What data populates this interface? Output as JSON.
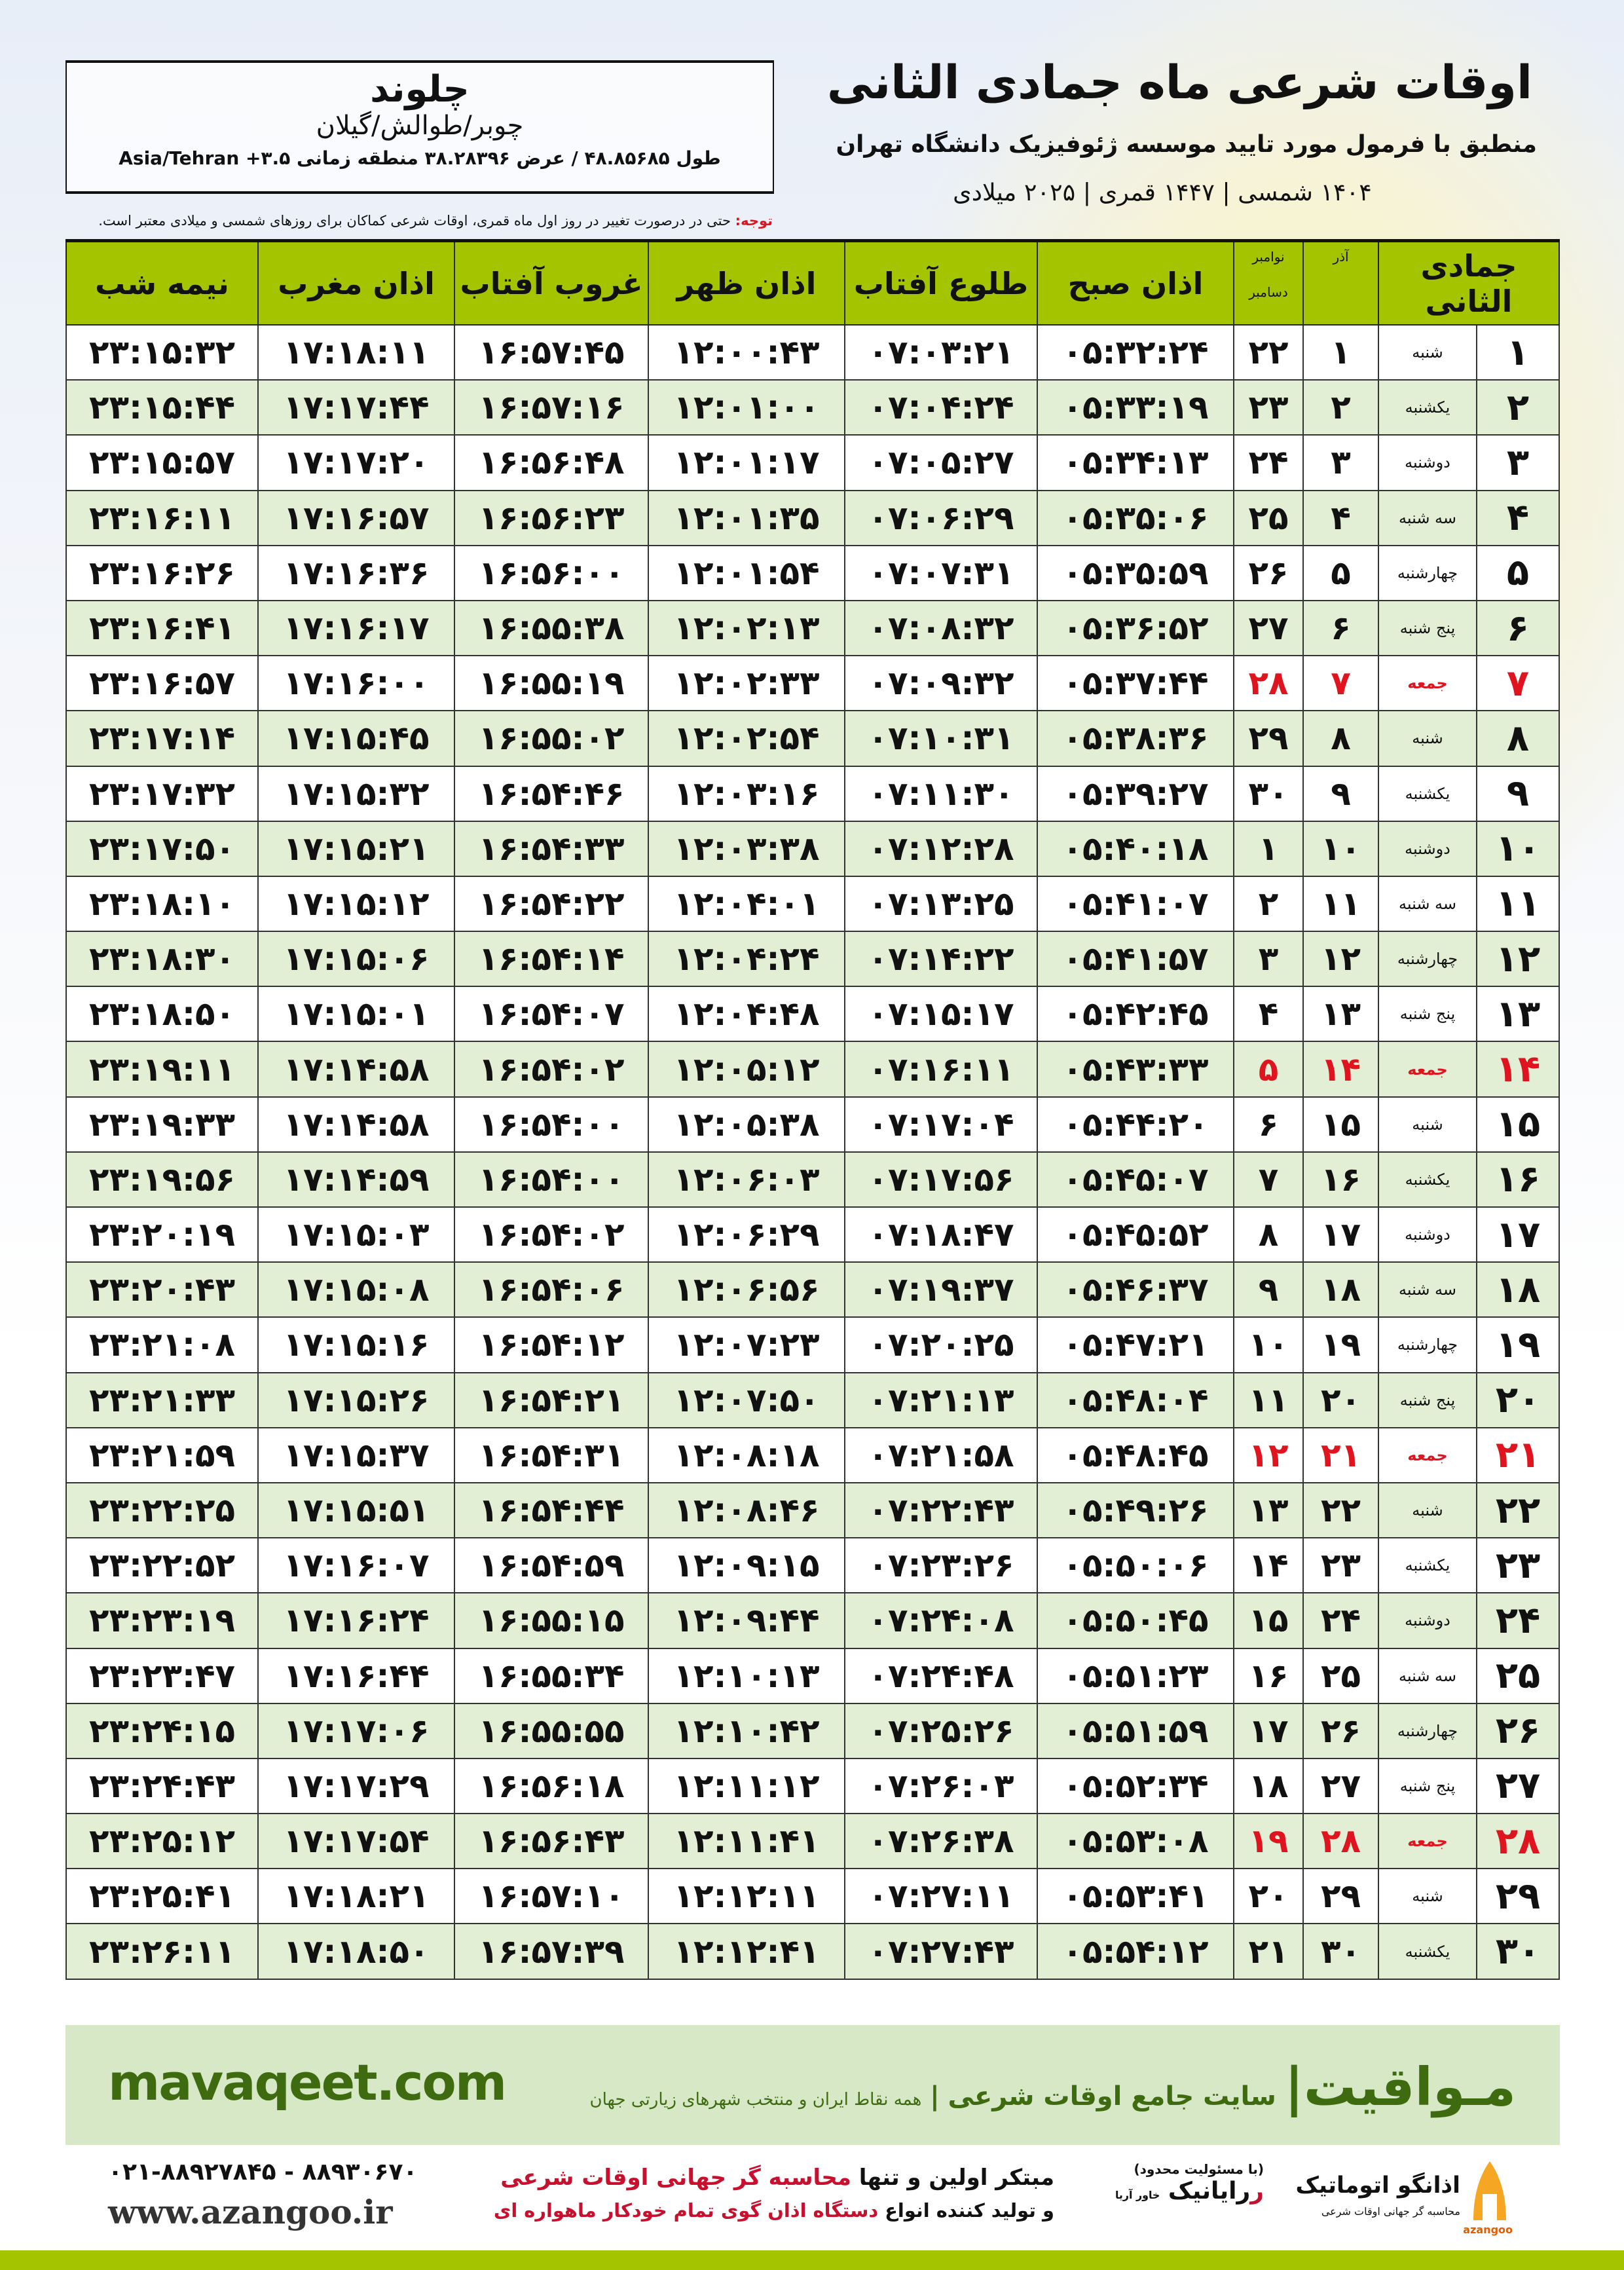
{
  "header": {
    "title": "اوقات شرعی ماه جمادی الثانی",
    "subtitle": "منطبق با فرمول مورد تایید موسسه ژئوفیزیک دانشگاه تهران",
    "years": "۱۴۰۴ شمسی | ۱۴۴۷ قمری | ۲۰۲۵ میلادی"
  },
  "city": {
    "name": "چلوند",
    "province": "چوبر/طوالش/گیلان",
    "geo": "طول ۴۸.۸۵۶۸۵ / عرض ۳۸.۲۸۳۹۶ منطقه زمانی ۳.۵+ Asia/Tehran"
  },
  "note": {
    "label": "توجه:",
    "text": " حتی در درصورت تغییر در روز اول ماه قمری، اوقات شرعی کماکان برای روزهای شمسی و میلادی معتبر است."
  },
  "table": {
    "headers": {
      "day": "جمادی الثانی",
      "azar": "آذر",
      "greg_top": "نوامبر",
      "greg_bottom": "دسامبر",
      "sobh": "اذان صبح",
      "tolu": "طلوع آفتاب",
      "zohr": "اذان ظهر",
      "ghorub": "غروب آفتاب",
      "maghreb": "اذان مغرب",
      "nime": "نیمه شب"
    },
    "holiday_color": "#e0141e",
    "rows": [
      [
        "۱",
        "شنبه",
        "۱",
        "۲۲",
        "۰۵:۳۲:۲۴",
        "۰۷:۰۳:۲۱",
        "۱۲:۰۰:۴۳",
        "۱۶:۵۷:۴۵",
        "۱۷:۱۸:۱۱",
        "۲۳:۱۵:۳۲"
      ],
      [
        "۲",
        "یکشنبه",
        "۲",
        "۲۳",
        "۰۵:۳۳:۱۹",
        "۰۷:۰۴:۲۴",
        "۱۲:۰۱:۰۰",
        "۱۶:۵۷:۱۶",
        "۱۷:۱۷:۴۴",
        "۲۳:۱۵:۴۴"
      ],
      [
        "۳",
        "دوشنبه",
        "۳",
        "۲۴",
        "۰۵:۳۴:۱۳",
        "۰۷:۰۵:۲۷",
        "۱۲:۰۱:۱۷",
        "۱۶:۵۶:۴۸",
        "۱۷:۱۷:۲۰",
        "۲۳:۱۵:۵۷"
      ],
      [
        "۴",
        "سه شنبه",
        "۴",
        "۲۵",
        "۰۵:۳۵:۰۶",
        "۰۷:۰۶:۲۹",
        "۱۲:۰۱:۳۵",
        "۱۶:۵۶:۲۳",
        "۱۷:۱۶:۵۷",
        "۲۳:۱۶:۱۱"
      ],
      [
        "۵",
        "چهارشنبه",
        "۵",
        "۲۶",
        "۰۵:۳۵:۵۹",
        "۰۷:۰۷:۳۱",
        "۱۲:۰۱:۵۴",
        "۱۶:۵۶:۰۰",
        "۱۷:۱۶:۳۶",
        "۲۳:۱۶:۲۶"
      ],
      [
        "۶",
        "پنج شنبه",
        "۶",
        "۲۷",
        "۰۵:۳۶:۵۲",
        "۰۷:۰۸:۳۲",
        "۱۲:۰۲:۱۳",
        "۱۶:۵۵:۳۸",
        "۱۷:۱۶:۱۷",
        "۲۳:۱۶:۴۱"
      ],
      [
        "۷",
        "جمعه",
        "۷",
        "۲۸",
        "۰۵:۳۷:۴۴",
        "۰۷:۰۹:۳۲",
        "۱۲:۰۲:۳۳",
        "۱۶:۵۵:۱۹",
        "۱۷:۱۶:۰۰",
        "۲۳:۱۶:۵۷"
      ],
      [
        "۸",
        "شنبه",
        "۸",
        "۲۹",
        "۰۵:۳۸:۳۶",
        "۰۷:۱۰:۳۱",
        "۱۲:۰۲:۵۴",
        "۱۶:۵۵:۰۲",
        "۱۷:۱۵:۴۵",
        "۲۳:۱۷:۱۴"
      ],
      [
        "۹",
        "یکشنبه",
        "۹",
        "۳۰",
        "۰۵:۳۹:۲۷",
        "۰۷:۱۱:۳۰",
        "۱۲:۰۳:۱۶",
        "۱۶:۵۴:۴۶",
        "۱۷:۱۵:۳۲",
        "۲۳:۱۷:۳۲"
      ],
      [
        "۱۰",
        "دوشنبه",
        "۱۰",
        "۱",
        "۰۵:۴۰:۱۸",
        "۰۷:۱۲:۲۸",
        "۱۲:۰۳:۳۸",
        "۱۶:۵۴:۳۳",
        "۱۷:۱۵:۲۱",
        "۲۳:۱۷:۵۰"
      ],
      [
        "۱۱",
        "سه شنبه",
        "۱۱",
        "۲",
        "۰۵:۴۱:۰۷",
        "۰۷:۱۳:۲۵",
        "۱۲:۰۴:۰۱",
        "۱۶:۵۴:۲۲",
        "۱۷:۱۵:۱۲",
        "۲۳:۱۸:۱۰"
      ],
      [
        "۱۲",
        "چهارشنبه",
        "۱۲",
        "۳",
        "۰۵:۴۱:۵۷",
        "۰۷:۱۴:۲۲",
        "۱۲:۰۴:۲۴",
        "۱۶:۵۴:۱۴",
        "۱۷:۱۵:۰۶",
        "۲۳:۱۸:۳۰"
      ],
      [
        "۱۳",
        "پنج شنبه",
        "۱۳",
        "۴",
        "۰۵:۴۲:۴۵",
        "۰۷:۱۵:۱۷",
        "۱۲:۰۴:۴۸",
        "۱۶:۵۴:۰۷",
        "۱۷:۱۵:۰۱",
        "۲۳:۱۸:۵۰"
      ],
      [
        "۱۴",
        "جمعه",
        "۱۴",
        "۵",
        "۰۵:۴۳:۳۳",
        "۰۷:۱۶:۱۱",
        "۱۲:۰۵:۱۲",
        "۱۶:۵۴:۰۲",
        "۱۷:۱۴:۵۸",
        "۲۳:۱۹:۱۱"
      ],
      [
        "۱۵",
        "شنبه",
        "۱۵",
        "۶",
        "۰۵:۴۴:۲۰",
        "۰۷:۱۷:۰۴",
        "۱۲:۰۵:۳۸",
        "۱۶:۵۴:۰۰",
        "۱۷:۱۴:۵۸",
        "۲۳:۱۹:۳۳"
      ],
      [
        "۱۶",
        "یکشنبه",
        "۱۶",
        "۷",
        "۰۵:۴۵:۰۷",
        "۰۷:۱۷:۵۶",
        "۱۲:۰۶:۰۳",
        "۱۶:۵۴:۰۰",
        "۱۷:۱۴:۵۹",
        "۲۳:۱۹:۵۶"
      ],
      [
        "۱۷",
        "دوشنبه",
        "۱۷",
        "۸",
        "۰۵:۴۵:۵۲",
        "۰۷:۱۸:۴۷",
        "۱۲:۰۶:۲۹",
        "۱۶:۵۴:۰۲",
        "۱۷:۱۵:۰۳",
        "۲۳:۲۰:۱۹"
      ],
      [
        "۱۸",
        "سه شنبه",
        "۱۸",
        "۹",
        "۰۵:۴۶:۳۷",
        "۰۷:۱۹:۳۷",
        "۱۲:۰۶:۵۶",
        "۱۶:۵۴:۰۶",
        "۱۷:۱۵:۰۸",
        "۲۳:۲۰:۴۳"
      ],
      [
        "۱۹",
        "چهارشنبه",
        "۱۹",
        "۱۰",
        "۰۵:۴۷:۲۱",
        "۰۷:۲۰:۲۵",
        "۱۲:۰۷:۲۳",
        "۱۶:۵۴:۱۲",
        "۱۷:۱۵:۱۶",
        "۲۳:۲۱:۰۸"
      ],
      [
        "۲۰",
        "پنج شنبه",
        "۲۰",
        "۱۱",
        "۰۵:۴۸:۰۴",
        "۰۷:۲۱:۱۳",
        "۱۲:۰۷:۵۰",
        "۱۶:۵۴:۲۱",
        "۱۷:۱۵:۲۶",
        "۲۳:۲۱:۳۳"
      ],
      [
        "۲۱",
        "جمعه",
        "۲۱",
        "۱۲",
        "۰۵:۴۸:۴۵",
        "۰۷:۲۱:۵۸",
        "۱۲:۰۸:۱۸",
        "۱۶:۵۴:۳۱",
        "۱۷:۱۵:۳۷",
        "۲۳:۲۱:۵۹"
      ],
      [
        "۲۲",
        "شنبه",
        "۲۲",
        "۱۳",
        "۰۵:۴۹:۲۶",
        "۰۷:۲۲:۴۳",
        "۱۲:۰۸:۴۶",
        "۱۶:۵۴:۴۴",
        "۱۷:۱۵:۵۱",
        "۲۳:۲۲:۲۵"
      ],
      [
        "۲۳",
        "یکشنبه",
        "۲۳",
        "۱۴",
        "۰۵:۵۰:۰۶",
        "۰۷:۲۳:۲۶",
        "۱۲:۰۹:۱۵",
        "۱۶:۵۴:۵۹",
        "۱۷:۱۶:۰۷",
        "۲۳:۲۲:۵۲"
      ],
      [
        "۲۴",
        "دوشنبه",
        "۲۴",
        "۱۵",
        "۰۵:۵۰:۴۵",
        "۰۷:۲۴:۰۸",
        "۱۲:۰۹:۴۴",
        "۱۶:۵۵:۱۵",
        "۱۷:۱۶:۲۴",
        "۲۳:۲۳:۱۹"
      ],
      [
        "۲۵",
        "سه شنبه",
        "۲۵",
        "۱۶",
        "۰۵:۵۱:۲۳",
        "۰۷:۲۴:۴۸",
        "۱۲:۱۰:۱۳",
        "۱۶:۵۵:۳۴",
        "۱۷:۱۶:۴۴",
        "۲۳:۲۳:۴۷"
      ],
      [
        "۲۶",
        "چهارشنبه",
        "۲۶",
        "۱۷",
        "۰۵:۵۱:۵۹",
        "۰۷:۲۵:۲۶",
        "۱۲:۱۰:۴۲",
        "۱۶:۵۵:۵۵",
        "۱۷:۱۷:۰۶",
        "۲۳:۲۴:۱۵"
      ],
      [
        "۲۷",
        "پنج شنبه",
        "۲۷",
        "۱۸",
        "۰۵:۵۲:۳۴",
        "۰۷:۲۶:۰۳",
        "۱۲:۱۱:۱۲",
        "۱۶:۵۶:۱۸",
        "۱۷:۱۷:۲۹",
        "۲۳:۲۴:۴۳"
      ],
      [
        "۲۸",
        "جمعه",
        "۲۸",
        "۱۹",
        "۰۵:۵۳:۰۸",
        "۰۷:۲۶:۳۸",
        "۱۲:۱۱:۴۱",
        "۱۶:۵۶:۴۳",
        "۱۷:۱۷:۵۴",
        "۲۳:۲۵:۱۲"
      ],
      [
        "۲۹",
        "شنبه",
        "۲۹",
        "۲۰",
        "۰۵:۵۳:۴۱",
        "۰۷:۲۷:۱۱",
        "۱۲:۱۲:۱۱",
        "۱۶:۵۷:۱۰",
        "۱۷:۱۸:۲۱",
        "۲۳:۲۵:۴۱"
      ],
      [
        "۳۰",
        "یکشنبه",
        "۳۰",
        "۲۱",
        "۰۵:۵۴:۱۲",
        "۰۷:۲۷:۴۳",
        "۱۲:۱۲:۴۱",
        "۱۶:۵۷:۳۹",
        "۱۷:۱۸:۵۰",
        "۲۳:۲۶:۱۱"
      ]
    ]
  },
  "banner": {
    "site": "mavaqeet.com",
    "brand": "مـواقیت",
    "divider": "|",
    "tagline": "سایت جامع اوقات شرعی",
    "sub": "همه نقاط ایران و منتخب شهرهای زیارتی جهان"
  },
  "footer": {
    "phone": "۰۲۱-۸۸۹۲۷۸۴۵ - ۸۸۹۳۰۶۷۰",
    "www": "www.azangoo.ir",
    "promo1a": "مبتکر اولین و تنها ",
    "promo1b": "محاسبه گر جهانی اوقات شرعی",
    "promo2a": "و تولید کننده انواع ",
    "promo2b": "دستگاه اذان گوی تمام خودکار ماهواره ای",
    "logo_raianik": "رایانیک",
    "logo_raianik_small": "(با مسئولیت محدود)",
    "logo_raianik_side": "خاور آریا",
    "logo_azangoo": "اذانگو اتوماتیک",
    "logo_azangoo_sub": "محاسبه گر جهانی اوقات شرعی",
    "logo_azangoo_en": "azangoo"
  },
  "colors": {
    "header_green": "#a4c400",
    "alt_row": "#e3efd5",
    "brand_green": "#3f6b10",
    "red": "#e0141e"
  }
}
